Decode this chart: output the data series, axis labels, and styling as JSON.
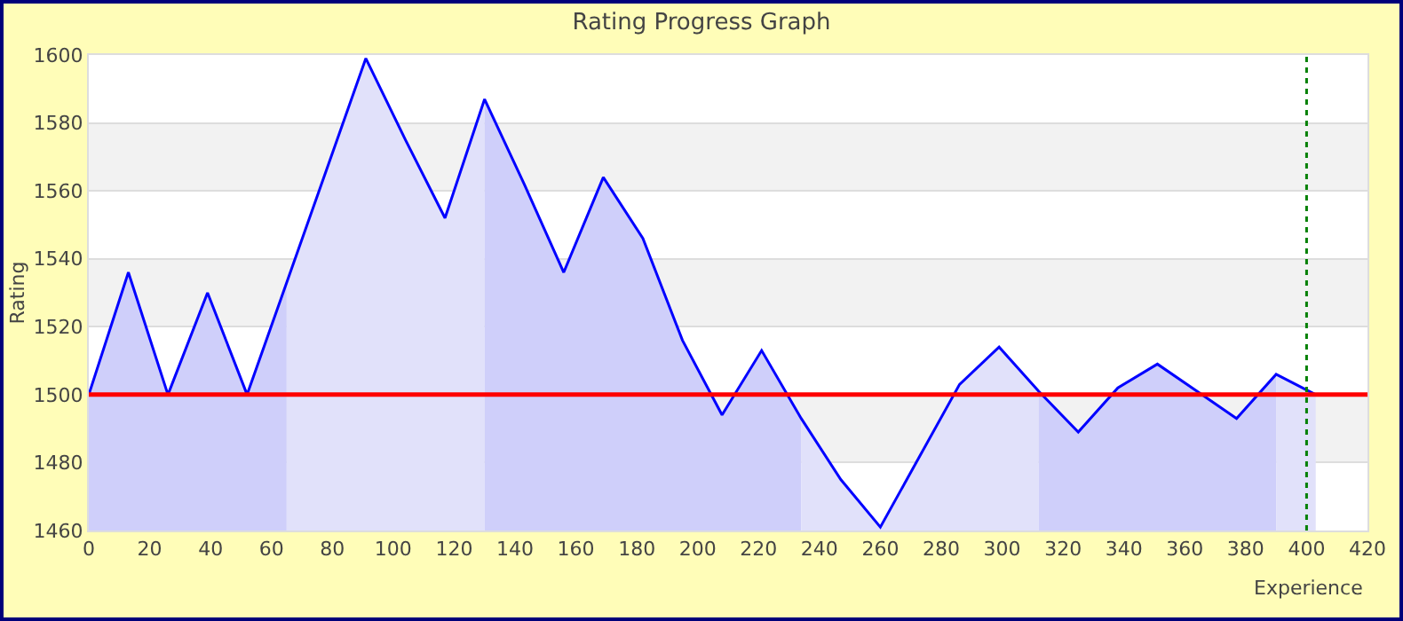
{
  "chart_data": {
    "type": "area",
    "title": "Rating Progress Graph",
    "xlabel": "Experience",
    "ylabel": "Rating",
    "xlim": [
      0,
      420
    ],
    "xticks": [
      0,
      20,
      40,
      60,
      80,
      100,
      120,
      140,
      160,
      180,
      200,
      220,
      240,
      260,
      280,
      300,
      320,
      340,
      360,
      380,
      400,
      420
    ],
    "ylim": [
      1460,
      1600
    ],
    "yticks": [
      1460,
      1480,
      1500,
      1520,
      1540,
      1560,
      1580,
      1600
    ],
    "grid": "y",
    "marker": "none",
    "line_style": "solid",
    "series": [
      {
        "color": "#cfcffa",
        "x": [
          0,
          13,
          26,
          39,
          52,
          65
        ],
        "values": [
          1500,
          1536,
          1500,
          1530,
          1500,
          1533
        ]
      },
      {
        "color": "#e1e1fa",
        "x": [
          65,
          78,
          91,
          104,
          117,
          130
        ],
        "values": [
          1533,
          1566,
          1599,
          1575,
          1552,
          1587
        ]
      },
      {
        "color": "#cfcffa",
        "x": [
          130,
          143,
          156,
          169,
          182,
          195,
          208,
          221,
          234
        ],
        "values": [
          1587,
          1562,
          1536,
          1564,
          1546,
          1516,
          1494,
          1513,
          1493
        ]
      },
      {
        "color": "#e1e1fa",
        "x": [
          234,
          247,
          260,
          273,
          286,
          299,
          312
        ],
        "values": [
          1493,
          1475,
          1461,
          1482,
          1503,
          1514,
          1501
        ]
      },
      {
        "color": "#cfcffa",
        "x": [
          312,
          325,
          338,
          351,
          364,
          377,
          390
        ],
        "values": [
          1501,
          1489,
          1502,
          1509,
          1501,
          1493,
          1506
        ]
      },
      {
        "color": "#e1e1fa",
        "x": [
          390,
          403
        ],
        "values": [
          1506,
          1500
        ]
      },
      {
        "type": "line",
        "color": "#0000ff",
        "x": [
          0,
          13,
          26,
          39,
          52,
          65,
          78,
          91,
          104,
          117,
          130,
          143,
          156,
          169,
          182,
          195,
          208,
          221,
          234,
          247,
          260,
          273,
          286,
          299,
          312,
          325,
          338,
          351,
          364,
          377,
          390,
          403
        ],
        "values": [
          1500,
          1536,
          1500,
          1530,
          1500,
          1533,
          1566,
          1599,
          1575,
          1552,
          1587,
          1562,
          1536,
          1564,
          1546,
          1516,
          1494,
          1513,
          1493,
          1475,
          1461,
          1482,
          1503,
          1514,
          1501,
          1489,
          1502,
          1509,
          1501,
          1493,
          1506,
          1500
        ]
      }
    ],
    "bands": [
      {
        "axis": "y",
        "from": 1480,
        "to": 1500,
        "color": "#f2f2f2"
      },
      {
        "axis": "y",
        "from": 1520,
        "to": 1540,
        "color": "#f2f2f2"
      },
      {
        "axis": "y",
        "from": 1560,
        "to": 1580,
        "color": "#f2f2f2"
      }
    ],
    "ref_lines": [
      {
        "axis": "y",
        "value": 1500,
        "color": "#ff0000",
        "line_style": "solid"
      },
      {
        "axis": "x",
        "value": 400,
        "color": "#008000",
        "line_style": "dotted"
      }
    ]
  }
}
